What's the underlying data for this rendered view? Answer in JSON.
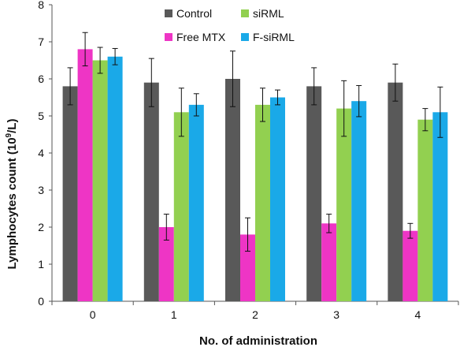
{
  "chart_data": {
    "type": "bar",
    "xlabel": "No. of administration",
    "ylabel_main": "Lymphocytes count (10",
    "ylabel_sup": "9",
    "ylabel_tail": "/L)",
    "categories": [
      "0",
      "1",
      "2",
      "3",
      "4"
    ],
    "ylim": [
      0,
      8
    ],
    "yticks": [
      0,
      1,
      2,
      3,
      4,
      5,
      6,
      7,
      8
    ],
    "grid": false,
    "legend_position": "top-center",
    "series": [
      {
        "name": "Control",
        "color": "#595959",
        "values": [
          5.8,
          5.9,
          6.0,
          5.8,
          5.9
        ],
        "errors": [
          0.5,
          0.65,
          0.75,
          0.5,
          0.5
        ]
      },
      {
        "name": "Free MTX",
        "color": "#ee35c5",
        "values": [
          6.8,
          2.0,
          1.8,
          2.1,
          1.9
        ],
        "errors": [
          0.45,
          0.35,
          0.45,
          0.25,
          0.2
        ]
      },
      {
        "name": "siRML",
        "color": "#92d050",
        "values": [
          6.5,
          5.1,
          5.3,
          5.2,
          4.9
        ],
        "errors": [
          0.35,
          0.65,
          0.45,
          0.75,
          0.3
        ]
      },
      {
        "name": "F-siRML",
        "color": "#1aa9e8",
        "values": [
          6.6,
          5.3,
          5.5,
          5.4,
          5.1
        ],
        "errors": [
          0.22,
          0.3,
          0.2,
          0.42,
          0.68
        ]
      }
    ]
  }
}
